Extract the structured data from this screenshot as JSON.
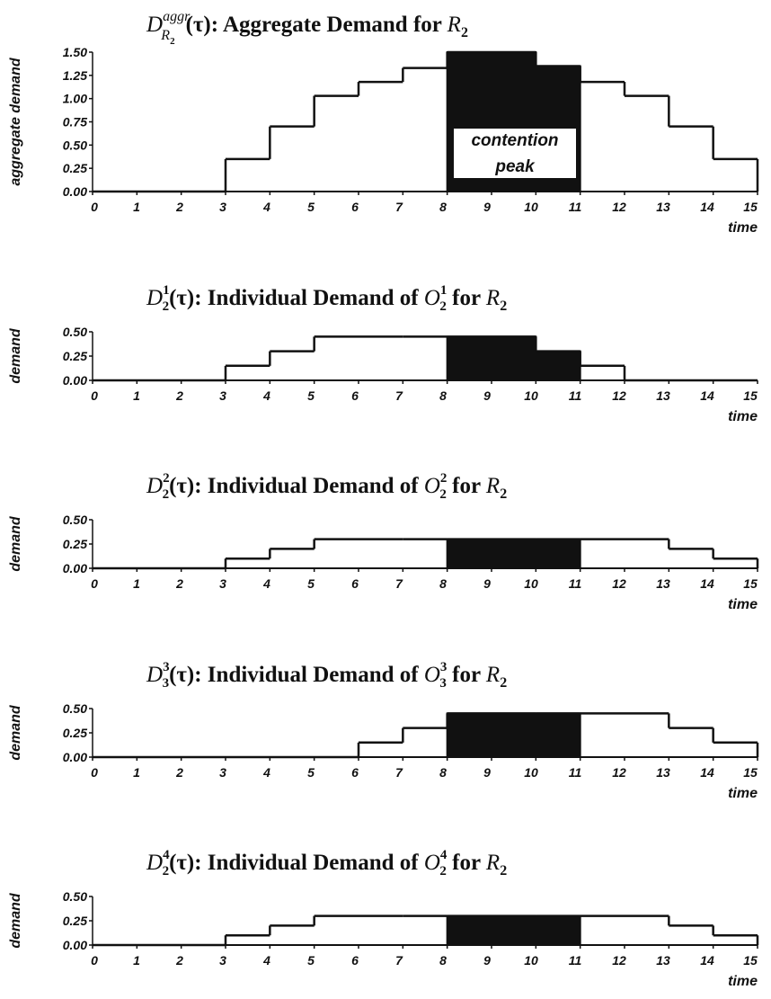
{
  "colors": {
    "ink": "#111111",
    "paper": "#ffffff"
  },
  "chart_data": [
    {
      "type": "line",
      "title": {
        "pre": "D",
        "sup": "aggr",
        "sub": "R",
        "subsub": "2",
        "post": "(τ): Aggregate Demand for ",
        "var": "R",
        "varsub": "2"
      },
      "xlabel": "time",
      "ylabel": "aggregate demand",
      "xlim": [
        0,
        15
      ],
      "ylim": [
        0,
        1.5
      ],
      "x_ticks": [
        0,
        1,
        2,
        3,
        4,
        5,
        6,
        7,
        8,
        9,
        10,
        11,
        12,
        13,
        14,
        15
      ],
      "y_ticks": [
        "0.00",
        "0.25",
        "0.50",
        "0.75",
        "1.00",
        "1.25",
        "1.50"
      ],
      "steps": [
        0,
        0,
        0,
        0.35,
        0.7,
        1.03,
        1.18,
        1.33,
        1.5,
        1.5,
        1.35,
        1.18,
        1.03,
        0.7,
        0.35
      ],
      "highlight": [
        8,
        11
      ],
      "annotation": [
        "contention",
        "peak"
      ]
    },
    {
      "type": "line",
      "title": {
        "pre": "D",
        "sub": "2",
        "sup": "1",
        "post": "(τ): Individual Demand of ",
        "var": "O",
        "varsub": "2",
        "varsup": "1",
        "post2": " for ",
        "var2": "R",
        "var2sub": "2"
      },
      "xlabel": "time",
      "ylabel": "demand",
      "xlim": [
        0,
        15
      ],
      "ylim": [
        0,
        0.5
      ],
      "x_ticks": [
        0,
        1,
        2,
        3,
        4,
        5,
        6,
        7,
        8,
        9,
        10,
        11,
        12,
        13,
        14,
        15
      ],
      "y_ticks": [
        "0.00",
        "0.25",
        "0.50"
      ],
      "steps": [
        0,
        0,
        0,
        0.15,
        0.3,
        0.45,
        0.45,
        0.45,
        0.45,
        0.45,
        0.3,
        0.15,
        0,
        0,
        0
      ],
      "highlight": [
        8,
        11
      ]
    },
    {
      "type": "line",
      "title": {
        "pre": "D",
        "sub": "2",
        "sup": "2",
        "post": "(τ): Individual Demand of ",
        "var": "O",
        "varsub": "2",
        "varsup": "2",
        "post2": " for ",
        "var2": "R",
        "var2sub": "2"
      },
      "xlabel": "time",
      "ylabel": "demand",
      "xlim": [
        0,
        15
      ],
      "ylim": [
        0,
        0.5
      ],
      "x_ticks": [
        0,
        1,
        2,
        3,
        4,
        5,
        6,
        7,
        8,
        9,
        10,
        11,
        12,
        13,
        14,
        15
      ],
      "y_ticks": [
        "0.00",
        "0.25",
        "0.50"
      ],
      "steps": [
        0,
        0,
        0,
        0.1,
        0.2,
        0.3,
        0.3,
        0.3,
        0.3,
        0.3,
        0.3,
        0.3,
        0.3,
        0.2,
        0.1
      ],
      "highlight": [
        8,
        11
      ]
    },
    {
      "type": "line",
      "title": {
        "pre": "D",
        "sub": "3",
        "sup": "3",
        "post": "(τ): Individual Demand of ",
        "var": "O",
        "varsub": "3",
        "varsup": "3",
        "post2": " for ",
        "var2": "R",
        "var2sub": "2"
      },
      "xlabel": "time",
      "ylabel": "demand",
      "xlim": [
        0,
        15
      ],
      "ylim": [
        0,
        0.5
      ],
      "x_ticks": [
        0,
        1,
        2,
        3,
        4,
        5,
        6,
        7,
        8,
        9,
        10,
        11,
        12,
        13,
        14,
        15
      ],
      "y_ticks": [
        "0.00",
        "0.25",
        "0.50"
      ],
      "steps": [
        0,
        0,
        0,
        0,
        0,
        0,
        0.15,
        0.3,
        0.45,
        0.45,
        0.45,
        0.45,
        0.45,
        0.3,
        0.15
      ],
      "highlight": [
        8,
        11
      ]
    },
    {
      "type": "line",
      "title": {
        "pre": "D",
        "sub": "2",
        "sup": "4",
        "post": "(τ): Individual Demand of ",
        "var": "O",
        "varsub": "2",
        "varsup": "4",
        "post2": " for ",
        "var2": "R",
        "var2sub": "2"
      },
      "xlabel": "time",
      "ylabel": "demand",
      "xlim": [
        0,
        15
      ],
      "ylim": [
        0,
        0.5
      ],
      "x_ticks": [
        0,
        1,
        2,
        3,
        4,
        5,
        6,
        7,
        8,
        9,
        10,
        11,
        12,
        13,
        14,
        15
      ],
      "y_ticks": [
        "0.00",
        "0.25",
        "0.50"
      ],
      "steps": [
        0,
        0,
        0,
        0.1,
        0.2,
        0.3,
        0.3,
        0.3,
        0.3,
        0.3,
        0.3,
        0.3,
        0.3,
        0.2,
        0.1
      ],
      "highlight": [
        8,
        11
      ]
    }
  ]
}
